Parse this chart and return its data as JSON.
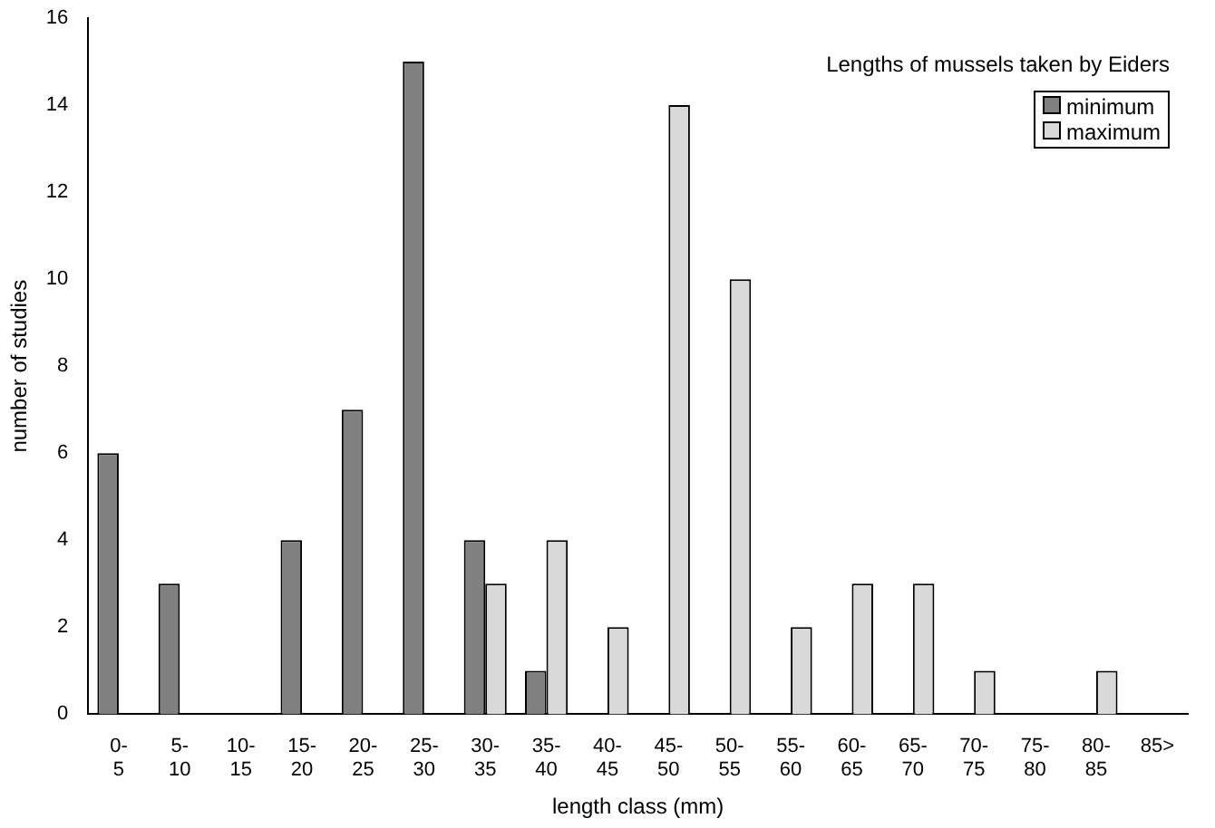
{
  "chart_data": {
    "type": "bar",
    "title": "Lengths of mussels taken by Eiders",
    "xlabel": "length class (mm)",
    "ylabel": "number of studies",
    "categories": [
      "0-5",
      "5-10",
      "10-15",
      "15-20",
      "20-25",
      "25-30",
      "30-35",
      "35-40",
      "40-45",
      "45-50",
      "50-55",
      "55-60",
      "60-65",
      "65-70",
      "70-75",
      "75-80",
      "80-85",
      "85>"
    ],
    "series": [
      {
        "name": "minimum",
        "color": "#808080",
        "values": [
          6,
          3,
          0,
          4,
          7,
          15,
          4,
          1,
          0,
          0,
          0,
          0,
          0,
          0,
          0,
          0,
          0,
          0
        ]
      },
      {
        "name": "maximum",
        "color": "#d9d9d9",
        "values": [
          0,
          0,
          0,
          0,
          0,
          0,
          3,
          4,
          2,
          14,
          10,
          2,
          3,
          3,
          1,
          0,
          1,
          0
        ]
      }
    ],
    "ylim": [
      0,
      16
    ],
    "yticks": [
      0,
      2,
      4,
      6,
      8,
      10,
      12,
      14,
      16
    ],
    "grid": false,
    "legend": "top right"
  }
}
